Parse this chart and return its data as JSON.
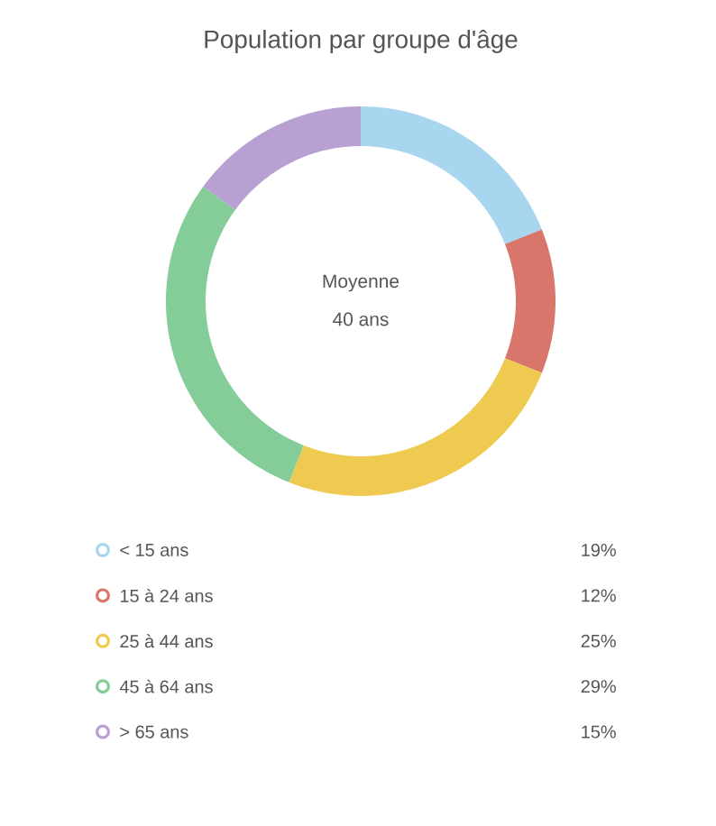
{
  "chart_data": {
    "type": "donut",
    "title": "Population par groupe d'âge",
    "categories": [
      "< 15 ans",
      "15 à 24 ans",
      "25 à 44 ans",
      "45 à 64 ans",
      "> 65 ans"
    ],
    "values": [
      19,
      12,
      25,
      29,
      15
    ],
    "value_labels": [
      "19%",
      "12%",
      "25%",
      "29%",
      "15%"
    ],
    "colors": [
      "#a9d6ef",
      "#d9766b",
      "#efca50",
      "#84cc98",
      "#b9a0d2"
    ],
    "annotations": [
      "Moyenne",
      "40 ans"
    ],
    "legend": "bottom"
  }
}
